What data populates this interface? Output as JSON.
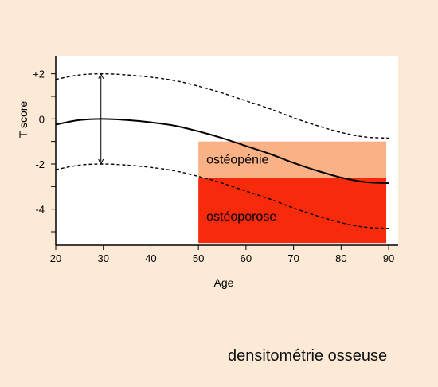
{
  "chart_data": {
    "type": "line",
    "xlabel": "Age",
    "ylabel": "T score",
    "xlim": [
      20,
      92
    ],
    "ylim": [
      -5.6,
      2.8
    ],
    "x_ticks": [
      20,
      30,
      40,
      50,
      60,
      70,
      80,
      90
    ],
    "y_ticks_labeled": [
      {
        "value": 2,
        "label": "+2"
      },
      {
        "value": 0,
        "label": "0"
      },
      {
        "value": -2,
        "label": "-2"
      },
      {
        "value": -4,
        "label": "-4"
      }
    ],
    "y_ticks_minor": [
      1,
      -1,
      -3,
      -5
    ],
    "grid": false,
    "series": [
      {
        "style": "solid",
        "x": [
          20,
          25,
          30,
          35,
          40,
          45,
          50,
          55,
          60,
          65,
          70,
          75,
          80,
          85,
          90
        ],
        "y": [
          -0.25,
          -0.05,
          0.0,
          -0.05,
          -0.15,
          -0.3,
          -0.55,
          -0.85,
          -1.2,
          -1.55,
          -1.95,
          -2.3,
          -2.6,
          -2.8,
          -2.85
        ]
      },
      {
        "style": "dashed",
        "x": [
          20,
          25,
          30,
          35,
          40,
          45,
          50,
          55,
          60,
          65,
          70,
          75,
          80,
          85,
          90
        ],
        "y": [
          1.75,
          1.95,
          2.0,
          1.95,
          1.85,
          1.7,
          1.45,
          1.15,
          0.8,
          0.45,
          0.05,
          -0.3,
          -0.6,
          -0.8,
          -0.85
        ]
      },
      {
        "style": "dashed",
        "x": [
          20,
          25,
          30,
          35,
          40,
          45,
          50,
          55,
          60,
          65,
          70,
          75,
          80,
          85,
          90
        ],
        "y": [
          -2.25,
          -2.05,
          -2.0,
          -2.05,
          -2.15,
          -2.3,
          -2.55,
          -2.85,
          -3.2,
          -3.55,
          -3.95,
          -4.3,
          -4.6,
          -4.8,
          -4.85
        ]
      }
    ],
    "arrow": {
      "x": 29.5,
      "y_from": 2.0,
      "y_to": -2.0
    },
    "regions": [
      {
        "label": "ostéopénie",
        "x": [
          50,
          89.5
        ],
        "y": [
          -1.0,
          -2.6
        ],
        "color": "#F9B185"
      },
      {
        "label": "ostéoporose",
        "x": [
          50,
          89.5
        ],
        "y": [
          -2.6,
          -5.5
        ],
        "color": "#F72A0C"
      }
    ]
  },
  "caption": "densitométrie osseuse",
  "colors": {
    "background": "#FCE9D6",
    "plot_background": "#FFFFFF",
    "curve": "#000000"
  }
}
